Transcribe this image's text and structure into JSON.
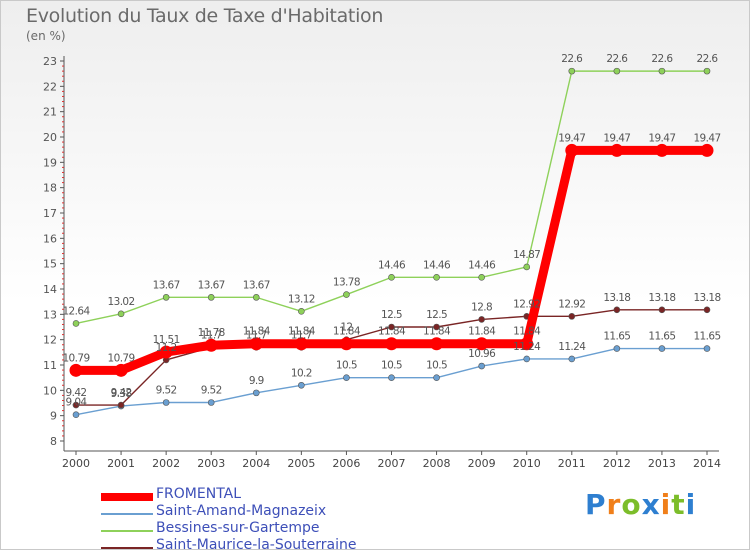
{
  "title": "Evolution du Taux de Taxe d'Habitation",
  "subtitle": "(en %)",
  "logo": {
    "letters": [
      "P",
      "r",
      "o",
      "x",
      "i",
      "t",
      "i"
    ],
    "colors": [
      "#2e7fd0",
      "#f07f1a",
      "#7cbd2a",
      "#2e7fd0",
      "#f07f1a",
      "#7cbd2a",
      "#2e7fd0"
    ]
  },
  "chart_data": {
    "type": "line",
    "title": "Evolution du Taux de Taxe d'Habitation",
    "ylabel": "(en %)",
    "x": [
      2000,
      2001,
      2002,
      2003,
      2004,
      2005,
      2006,
      2007,
      2008,
      2009,
      2010,
      2011,
      2012,
      2013,
      2014
    ],
    "ylim": [
      8,
      23
    ],
    "yticks": [
      8,
      9,
      10,
      11,
      12,
      13,
      14,
      15,
      16,
      17,
      18,
      19,
      20,
      21,
      22,
      23
    ],
    "grid": false,
    "legend_position": "bottom-left",
    "series": [
      {
        "name": "FROMENTAL",
        "color": "#ff0000",
        "values": [
          10.79,
          10.79,
          11.51,
          11.78,
          11.84,
          11.84,
          11.84,
          11.84,
          11.84,
          11.84,
          11.84,
          19.47,
          19.47,
          19.47,
          19.47
        ],
        "labels": [
          "10.79",
          "10.79",
          "11.51",
          "11.78",
          "11.84",
          "11.84",
          "11.84",
          "11.84",
          "11.84",
          "11.84",
          "11.84",
          "19.47",
          "19.47",
          "19.47",
          "19.47"
        ]
      },
      {
        "name": "Saint-Amand-Magnazeix",
        "color": "#6a9fd1",
        "values": [
          9.04,
          9.38,
          9.52,
          9.52,
          9.9,
          10.2,
          10.5,
          10.5,
          10.5,
          10.96,
          11.24,
          11.24,
          11.65,
          11.65,
          11.65
        ],
        "labels": [
          "9.04",
          "9.38",
          "9.52",
          "9.52",
          "9.9",
          "10.2",
          "10.5",
          "10.5",
          "10.5",
          "10.96",
          "11.24",
          "11.24",
          "11.65",
          "11.65",
          "11.65"
        ]
      },
      {
        "name": "Bessines-sur-Gartempe",
        "color": "#8ed15a",
        "values": [
          12.64,
          13.02,
          13.67,
          13.67,
          13.67,
          13.12,
          13.78,
          14.46,
          14.46,
          14.46,
          14.87,
          22.6,
          22.6,
          22.6,
          22.6
        ],
        "labels": [
          "12.64",
          "13.02",
          "13.67",
          "13.67",
          "13.67",
          "13.12",
          "13.78",
          "14.46",
          "14.46",
          "14.46",
          "14.87",
          "22.6",
          "22.6",
          "22.6",
          "22.6"
        ]
      },
      {
        "name": "Saint-Maurice-la-Souterraine",
        "color": "#7a2525",
        "values": [
          9.42,
          9.42,
          11.2,
          11.7,
          11.7,
          11.7,
          12.0,
          12.5,
          12.5,
          12.8,
          12.92,
          12.92,
          13.18,
          13.18,
          13.18
        ],
        "labels": [
          "9.42",
          "9.42",
          "11.2",
          "11.7",
          "11.7",
          "11.7",
          "12",
          "12.5",
          "12.5",
          "12.8",
          "12.92",
          "12.92",
          "13.18",
          "13.18",
          "13.18"
        ]
      }
    ]
  }
}
